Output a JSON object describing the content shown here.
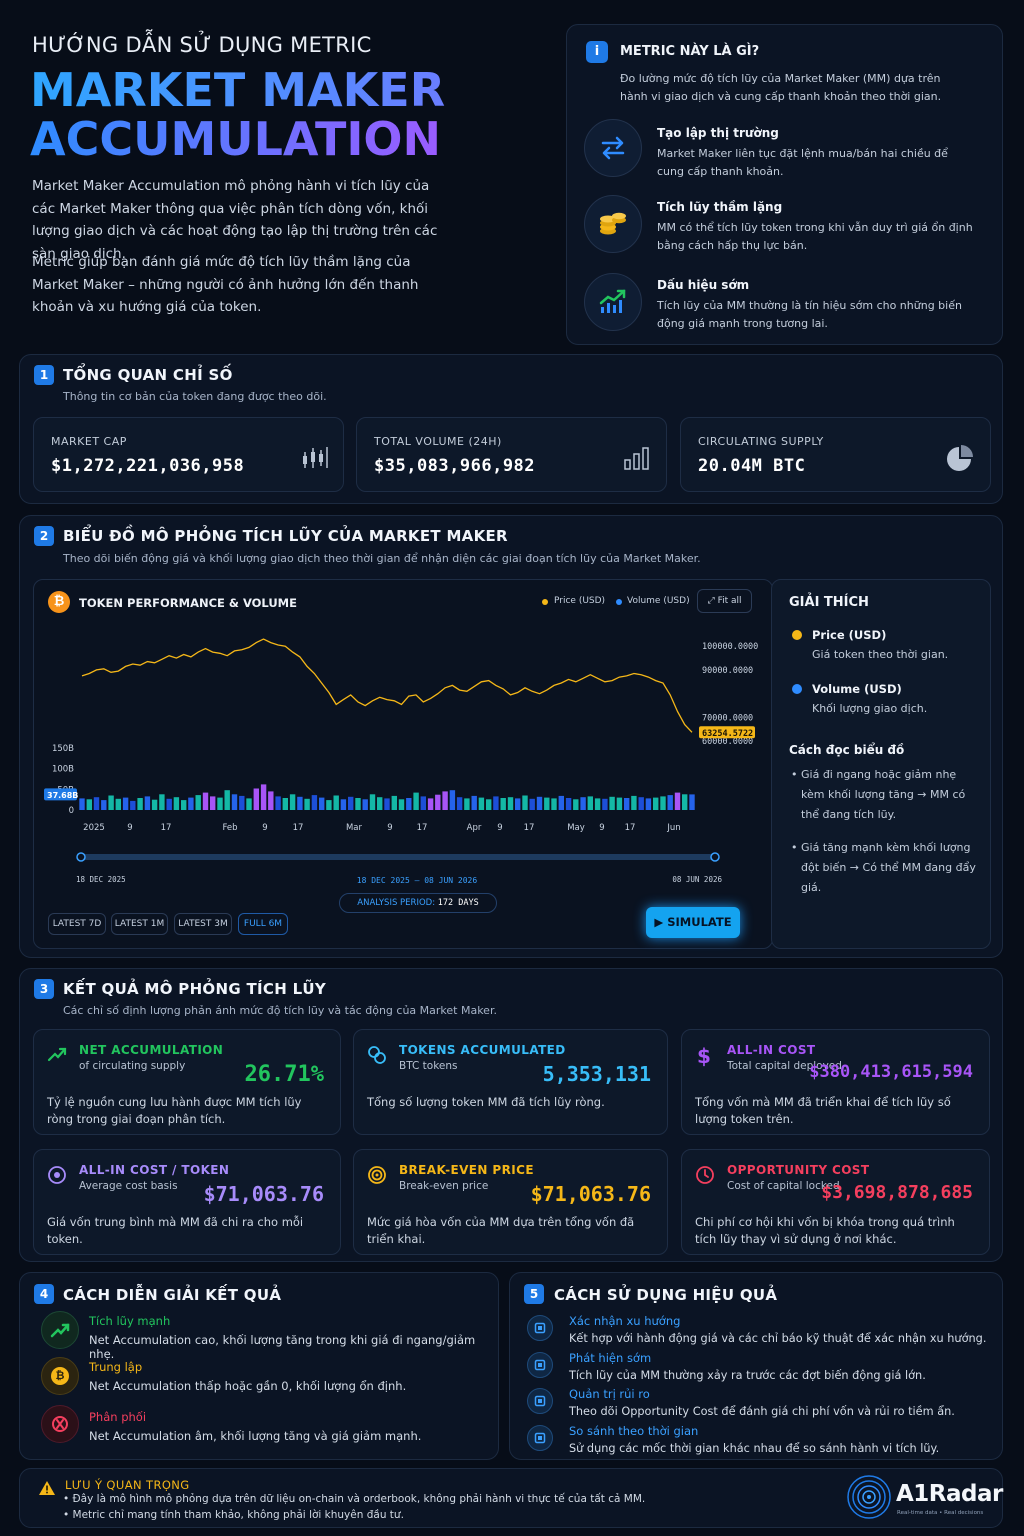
{
  "header": {
    "guide": "HƯỚNG DẪN SỬ DỤNG METRIC",
    "title_line1": "MARKET MAKER",
    "title_line2": "ACCUMULATION",
    "para1": "Market Maker Accumulation mô phỏng hành vi tích lũy của các Market Maker thông qua việc phân tích dòng vốn, khối lượng giao dịch và các hoạt động tạo lập thị trường trên các sàn giao dịch.",
    "para2": "Metric giúp bạn đánh giá mức độ tích lũy thầm lặng của Market Maker – những người có ảnh hưởng lớn đến thanh khoản và xu hướng giá của token."
  },
  "info": {
    "icon": "i",
    "title": "METRIC NÀY LÀ GÌ?",
    "desc": "Đo lường mức độ tích lũy của Market Maker (MM) dựa trên hành vi giao dịch và cung cấp thanh khoản theo thời gian.",
    "items": [
      {
        "title": "Tạo lập thị trường",
        "desc": "Market Maker liên tục đặt lệnh mua/bán hai chiều để cung cấp thanh khoản.",
        "icon": "swap-arrows-icon"
      },
      {
        "title": "Tích lũy thầm lặng",
        "desc": "MM có thể tích lũy token trong khi vẫn duy trì giá ổn định bằng cách hấp thụ lực bán.",
        "icon": "coins-stack-icon"
      },
      {
        "title": "Dấu hiệu sớm",
        "desc": "Tích lũy của MM thường là tín hiệu sớm cho những biến động giá mạnh trong tương lai.",
        "icon": "trend-up-icon"
      }
    ]
  },
  "overview": {
    "num": "1",
    "title": "TỔNG QUAN CHỈ SỐ",
    "subtitle": "Thông tin cơ bản của token đang được theo dõi.",
    "stats": [
      {
        "label": "MARKET CAP",
        "value": "$1,272,221,036,958"
      },
      {
        "label": "TOTAL VOLUME (24H)",
        "value": "$35,083,966,982"
      },
      {
        "label": "CIRCULATING SUPPLY",
        "value": "20.04M BTC"
      }
    ]
  },
  "simulation": {
    "num": "2",
    "title": "BIỂU ĐỒ MÔ PHỎNG TÍCH LŨY CỦA MARKET MAKER",
    "subtitle": "Theo dõi biến động giá và khối lượng giao dịch theo thời gian để nhận diện các giai đoạn tích lũy của Market Maker.",
    "chart_title": "TOKEN PERFORMANCE & VOLUME",
    "coin_symbol": "₿",
    "legend_price": "Price (USD)",
    "legend_volume": "Volume (USD)",
    "fit_all": "Fit all",
    "range_start": "18 DEC 2025",
    "range_end": "08 JUN 2026",
    "range_center": "18 DEC 2025 – 08 JUN 2026",
    "period_label": "ANALYSIS PERIOD:",
    "period_value": "172 DAYS",
    "chips": [
      "LATEST 7D",
      "LATEST 1M",
      "LATEST 3M",
      "FULL 6M"
    ],
    "simulate": "SIMULATE",
    "colors": {
      "price": "#f5b718",
      "volume_up": "#14b8a6",
      "volume_down": "#2563eb",
      "spike": "#a855f7"
    }
  },
  "chart_data": {
    "type": "line",
    "title": "TOKEN PERFORMANCE & VOLUME",
    "price_axis_ticks": [
      "100000.0000",
      "90000.0000",
      "70000.0000",
      "60000.0000"
    ],
    "volume_axis_ticks": [
      "150B",
      "100B",
      "50B",
      "0"
    ],
    "x_ticks": [
      "2025",
      "9",
      "17",
      "Feb",
      "9",
      "17",
      "Mar",
      "9",
      "17",
      "Apr",
      "9",
      "17",
      "May",
      "9",
      "17",
      "Jun"
    ],
    "last_price_label": "63254.5722",
    "last_volume_label": "37.68B",
    "price_series": [
      87000,
      88000,
      89500,
      90000,
      88500,
      89000,
      91000,
      92000,
      91500,
      93000,
      92500,
      94000,
      95500,
      94500,
      96000,
      95000,
      97000,
      98500,
      97000,
      96500,
      95500,
      97500,
      98000,
      99000,
      101000,
      102500,
      101000,
      100000,
      99500,
      97000,
      95000,
      91000,
      88000,
      84000,
      80000,
      75000,
      77000,
      79000,
      76000,
      74500,
      76500,
      78000,
      77000,
      76500,
      75000,
      78500,
      79000,
      76000,
      77500,
      79500,
      82000,
      83000,
      81000,
      80500,
      82500,
      84500,
      85000,
      83000,
      81500,
      79000,
      80000,
      82000,
      80500,
      79500,
      81000,
      83000,
      84000,
      85500,
      84500,
      86000,
      87500,
      86000,
      84500,
      85000,
      86500,
      87000,
      88000,
      87500,
      86500,
      85000,
      84000,
      79000,
      72000,
      66500,
      63254
    ],
    "volume_series": [
      28,
      26,
      31,
      24,
      35,
      27,
      30,
      22,
      29,
      33,
      25,
      38,
      27,
      31,
      24,
      30,
      36,
      42,
      33,
      30,
      48,
      38,
      34,
      28,
      52,
      62,
      45,
      33,
      29,
      38,
      32,
      27,
      36,
      30,
      24,
      35,
      26,
      32,
      29,
      26,
      38,
      31,
      28,
      34,
      26,
      29,
      42,
      33,
      28,
      37,
      45,
      48,
      31,
      28,
      34,
      30,
      26,
      33,
      29,
      31,
      28,
      35,
      27,
      32,
      30,
      28,
      34,
      29,
      26,
      31,
      33,
      28,
      27,
      32,
      30,
      29,
      34,
      31,
      28,
      30,
      33,
      36,
      42,
      38,
      37.68
    ],
    "spike_indices": [
      17,
      18,
      24,
      25,
      26,
      48,
      49,
      50,
      82
    ]
  },
  "legend_panel": {
    "title": "GIẢI THÍCH",
    "items": [
      {
        "title": "Price (USD)",
        "desc": "Giá token theo thời gian."
      },
      {
        "title": "Volume (USD)",
        "desc": "Khối lượng giao dịch."
      }
    ],
    "how_title": "Cách đọc biểu đồ",
    "bullets": [
      "Giá đi ngang hoặc giảm nhẹ kèm khối lượng tăng → MM có thể đang tích lũy.",
      "Giá tăng mạnh kèm khối lượng đột biến → Có thể MM đang đẩy giá."
    ]
  },
  "results": {
    "num": "3",
    "title": "KẾT QUẢ MÔ PHỎNG TÍCH LŨY",
    "subtitle": "Các chỉ số định lượng phản ánh mức độ tích lũy và tác động của Market Maker.",
    "cards": [
      {
        "title": "NET ACCUMULATION",
        "sub": "of circulating supply",
        "value": "26.71%",
        "desc": "Tỷ lệ nguồn cung lưu hành được MM tích lũy ròng trong giai đoạn phân tích.",
        "color": "#22c55e",
        "icon": "trend-up-icon"
      },
      {
        "title": "TOKENS ACCUMULATED",
        "sub": "BTC tokens",
        "value": "5,353,131",
        "desc": "Tổng số lượng token MM đã tích lũy ròng.",
        "color": "#38bdf8",
        "icon": "coins-icon"
      },
      {
        "title": "ALL-IN COST",
        "sub": "Total capital deployed",
        "value": "$380,413,615,594",
        "desc": "Tổng vốn mà MM đã triển khai để tích lũy số lượng token trên.",
        "color": "#a855f7",
        "icon": "dollar-icon"
      },
      {
        "title": "ALL-IN COST / TOKEN",
        "sub": "Average cost basis",
        "value": "$71,063.76",
        "desc": "Giá vốn trung bình mà MM đã chi ra cho mỗi token.",
        "color": "#a78bfa",
        "icon": "target-icon"
      },
      {
        "title": "BREAK-EVEN PRICE",
        "sub": "Break-even price",
        "value": "$71,063.76",
        "desc": "Mức giá hòa vốn của MM dựa trên tổng vốn đã triển khai.",
        "color": "#f5b718",
        "icon": "bullseye-icon"
      },
      {
        "title": "OPPORTUNITY COST",
        "sub": "Cost of capital locked",
        "value": "$3,698,878,685",
        "desc": "Chi phí cơ hội khi vốn bị khóa trong quá trình tích lũy thay vì sử dụng ở nơi khác.",
        "color": "#f43f5e",
        "icon": "clock-icon"
      }
    ]
  },
  "interpret": {
    "num": "4",
    "title": "CÁCH DIỄN GIẢI KẾT QUẢ",
    "items": [
      {
        "title": "Tích lũy mạnh",
        "desc": "Net Accumulation cao, khối lượng tăng trong khi giá đi ngang/giảm nhẹ.",
        "color": "#22c55e"
      },
      {
        "title": "Trung lập",
        "desc": "Net Accumulation thấp hoặc gần 0, khối lượng ổn định.",
        "color": "#f5b718"
      },
      {
        "title": "Phân phối",
        "desc": "Net Accumulation âm, khối lượng tăng và giá giảm mạnh.",
        "color": "#f43f5e"
      }
    ]
  },
  "usage": {
    "num": "5",
    "title": "CÁCH SỬ DỤNG HIỆU QUẢ",
    "items": [
      {
        "title": "Xác nhận xu hướng",
        "desc": "Kết hợp với hành động giá và các chỉ báo kỹ thuật để xác nhận xu hướng."
      },
      {
        "title": "Phát hiện sớm",
        "desc": "Tích lũy của MM thường xảy ra trước các đợt biến động giá lớn."
      },
      {
        "title": "Quản trị rủi ro",
        "desc": "Theo dõi Opportunity Cost để đánh giá chi phí vốn và rủi ro tiềm ẩn."
      },
      {
        "title": "So sánh theo thời gian",
        "desc": "Sử dụng các mốc thời gian khác nhau để so sánh hành vi tích lũy."
      }
    ]
  },
  "note": {
    "title": "LƯU Ý QUAN TRỌNG",
    "lines": [
      "• Đây là mô hình mô phỏng dựa trên dữ liệu on-chain và orderbook, không phải hành vi thực tế của tất cả MM.",
      "• Metric chỉ mang tính tham khảo, không phải lời khuyên đầu tư."
    ]
  },
  "brand": {
    "name": "A1Radar",
    "tagline": "Real-time data • Real decisions"
  }
}
